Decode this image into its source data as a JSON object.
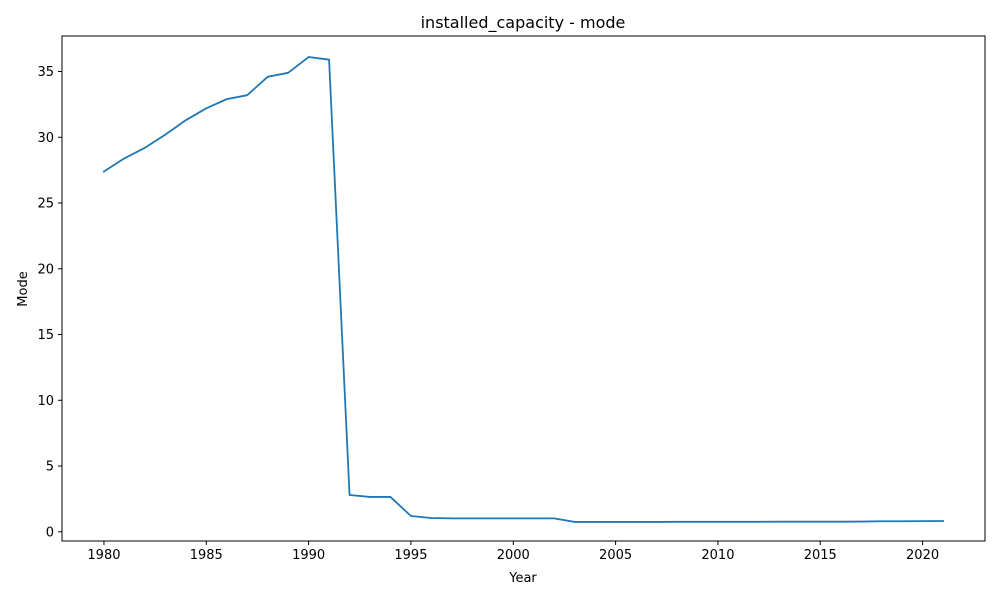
{
  "chart_data": {
    "type": "line",
    "title": "installed_capacity - mode",
    "xlabel": "Year",
    "ylabel": "Mode",
    "xlim": [
      1977.95,
      2023.05
    ],
    "ylim": [
      -0.7,
      37.7
    ],
    "xticks": [
      1980,
      1985,
      1990,
      1995,
      2000,
      2005,
      2010,
      2015,
      2020
    ],
    "yticks": [
      0,
      5,
      10,
      15,
      20,
      25,
      30,
      35
    ],
    "grid": false,
    "series": [
      {
        "color": "#1f77b4",
        "x": [
          1980,
          1981,
          1982,
          1983,
          1984,
          1985,
          1986,
          1987,
          1988,
          1989,
          1990,
          1991,
          1992,
          1993,
          1994,
          1995,
          1996,
          1997,
          1998,
          1999,
          2000,
          2001,
          2002,
          2003,
          2004,
          2005,
          2006,
          2007,
          2008,
          2009,
          2010,
          2011,
          2012,
          2013,
          2014,
          2015,
          2016,
          2017,
          2018,
          2019,
          2020,
          2021
        ],
        "y": [
          27.4,
          28.4,
          29.2,
          30.2,
          31.3,
          32.2,
          32.9,
          33.2,
          34.6,
          34.9,
          36.1,
          35.9,
          2.8,
          2.65,
          2.65,
          1.2,
          1.05,
          1.02,
          1.02,
          1.02,
          1.02,
          1.02,
          1.02,
          0.75,
          0.75,
          0.75,
          0.75,
          0.75,
          0.76,
          0.76,
          0.76,
          0.76,
          0.76,
          0.77,
          0.77,
          0.77,
          0.77,
          0.78,
          0.8,
          0.8,
          0.81,
          0.82
        ]
      }
    ]
  }
}
